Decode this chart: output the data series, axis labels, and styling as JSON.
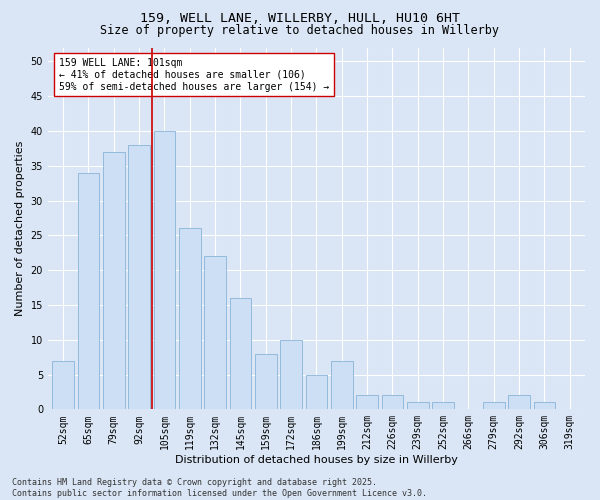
{
  "title1": "159, WELL LANE, WILLERBY, HULL, HU10 6HT",
  "title2": "Size of property relative to detached houses in Willerby",
  "xlabel": "Distribution of detached houses by size in Willerby",
  "ylabel": "Number of detached properties",
  "categories": [
    "52sqm",
    "65sqm",
    "79sqm",
    "92sqm",
    "105sqm",
    "119sqm",
    "132sqm",
    "145sqm",
    "159sqm",
    "172sqm",
    "186sqm",
    "199sqm",
    "212sqm",
    "226sqm",
    "239sqm",
    "252sqm",
    "266sqm",
    "279sqm",
    "292sqm",
    "306sqm",
    "319sqm"
  ],
  "values": [
    7,
    34,
    37,
    38,
    40,
    26,
    22,
    16,
    8,
    10,
    5,
    7,
    2,
    2,
    1,
    1,
    0,
    1,
    2,
    1,
    0
  ],
  "bar_color": "#ccdff5",
  "bar_edge_color": "#8ab4d8",
  "vline_x": 3.5,
  "vline_color": "#cc0000",
  "annotation_text": "159 WELL LANE: 101sqm\n← 41% of detached houses are smaller (106)\n59% of semi-detached houses are larger (154) →",
  "annotation_box_color": "#ffffff",
  "annotation_border_color": "#cc0000",
  "ylim": [
    0,
    52
  ],
  "yticks": [
    0,
    5,
    10,
    15,
    20,
    25,
    30,
    35,
    40,
    45,
    50
  ],
  "bg_color": "#dae6f5",
  "plot_bg_color": "#dae6f5",
  "grid_color": "#ffffff",
  "footer_text": "Contains HM Land Registry data © Crown copyright and database right 2025.\nContains public sector information licensed under the Open Government Licence v3.0.",
  "title_fontsize": 9.5,
  "subtitle_fontsize": 8.5,
  "axis_label_fontsize": 8,
  "tick_fontsize": 7,
  "annotation_fontsize": 7,
  "footer_fontsize": 6
}
